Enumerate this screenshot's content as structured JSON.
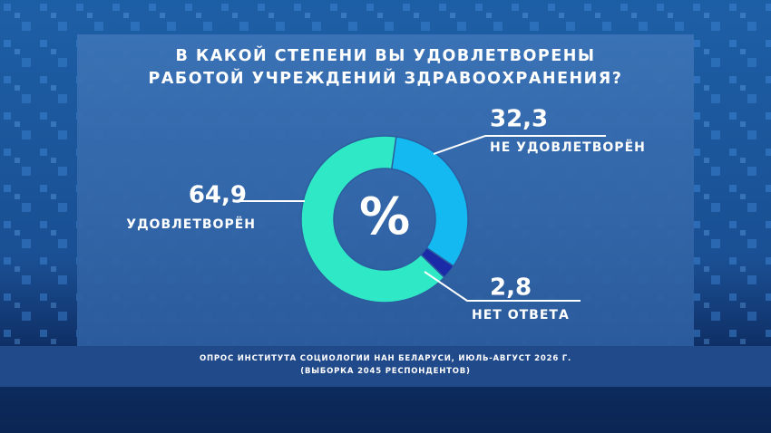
{
  "chart_data": {
    "type": "donut",
    "title": "В КАКОЙ СТЕПЕНИ ВЫ УДОВЛЕТВОРЕНЫ РАБОТОЙ УЧРЕЖДЕНИЙ ЗДРАВООХРАНЕНИЯ?",
    "center_label": "%",
    "categories": [
      "НЕ УДОВЛЕТВОРЁН",
      "НЕТ ОТВЕТА",
      "УДОВЛЕТВОРЁН"
    ],
    "values": [
      32.3,
      2.8,
      64.9
    ],
    "value_labels": [
      "32,3",
      "2,8",
      "64,9"
    ],
    "colors": [
      "#14b9f2",
      "#1b2aa6",
      "#2fe9c6"
    ],
    "notes": [
      "ОПРОС ИНСТИТУТА СОЦИОЛОГИИ НАН БЕЛАРУСИ, ИЮЛЬ-АВГУСТ 2026 Г.",
      "(ВЫБОРКА 2045 РЕСПОНДЕНТОВ)"
    ]
  }
}
